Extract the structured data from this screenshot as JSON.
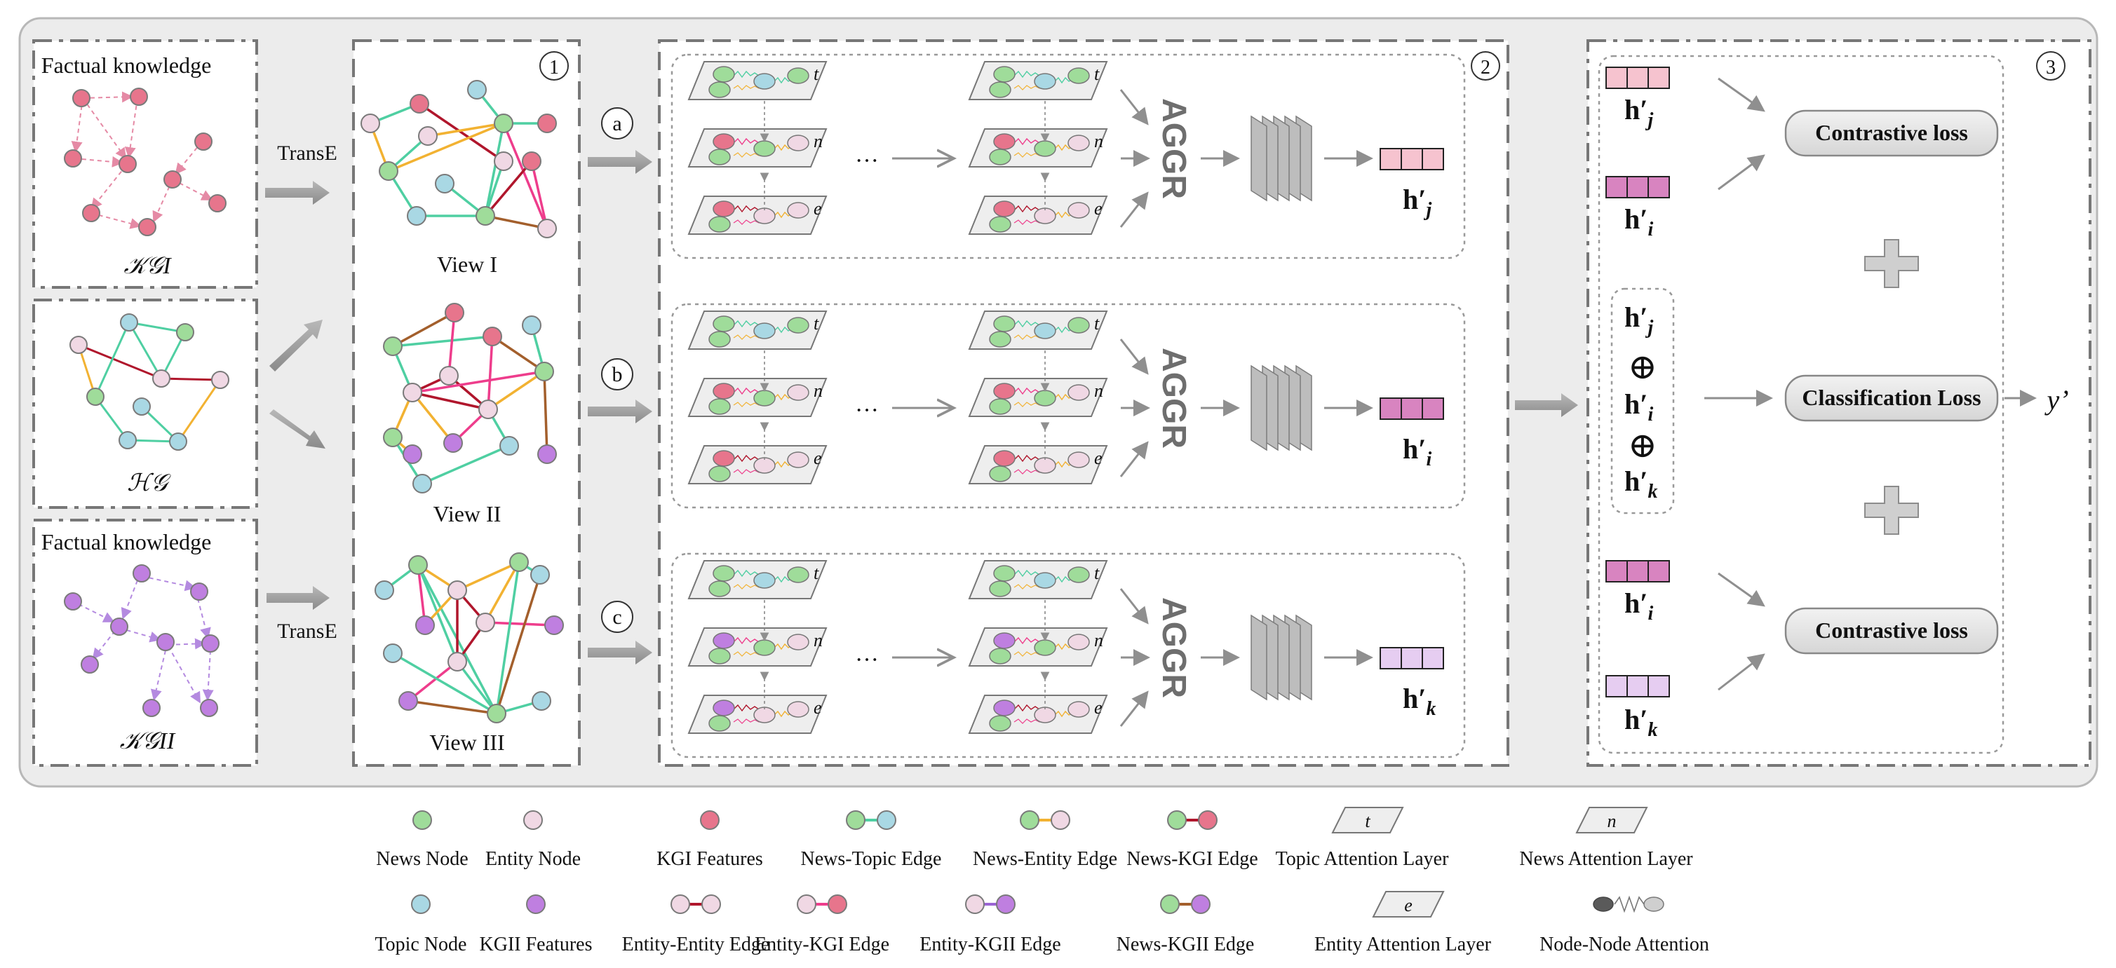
{
  "colors": {
    "news": "#9fdc9a",
    "entity": "#f0d8e4",
    "kgi": "#e7758c",
    "topic": "#a9d8e4",
    "kgii": "#bf7fe0",
    "edge_news_topic": "#4fcfa2",
    "edge_news_entity": "#f2b232",
    "edge_entity_entity": "#b0162c",
    "edge_entity_kgi": "#ee3d8c",
    "edge_entity_kgii": "#9b63d4",
    "edge_news_kgii": "#a35f2c",
    "kg_arrow_kgi": "#e58aa5",
    "kg_arrow_kgii": "#b48ae0",
    "box": "#8a8a8a",
    "arrow": "#8f8f8f"
  },
  "left": {
    "kgi_title": "Factual knowledge",
    "kgi_name": "𝒦𝒢I",
    "hg_name": "ℋ𝒢",
    "kgii_title": "Factual knowledge",
    "kgii_name": "𝒦𝒢II",
    "transe_top": "TransE",
    "transe_bottom": "TransE"
  },
  "views": {
    "num": "1",
    "view1": "View I",
    "view2": "View II",
    "view3": "View III"
  },
  "middle": {
    "num": "2",
    "branches": [
      {
        "letter": "a",
        "aggr": "AGGR",
        "out": "h′",
        "out_sub": "j"
      },
      {
        "letter": "b",
        "aggr": "AGGR",
        "out": "h′",
        "out_sub": "i"
      },
      {
        "letter": "c",
        "aggr": "AGGR",
        "out": "h′",
        "out_sub": "k"
      }
    ],
    "layer_letters": [
      "t",
      "n",
      "e"
    ],
    "dots": "···"
  },
  "right": {
    "num": "3",
    "contrastive_top": "Contrastive loss",
    "classification": "Classification Loss",
    "contrastive_bottom": "Contrastive loss",
    "output": "y’",
    "h": "h′",
    "sub_j": "j",
    "sub_i": "i",
    "sub_k": "k",
    "oplus": "⊕"
  },
  "legend": [
    {
      "label": "News Node"
    },
    {
      "label": "Entity Node"
    },
    {
      "label": "KGI  Features"
    },
    {
      "label": "News-Topic Edge"
    },
    {
      "label": "News-Entity Edge"
    },
    {
      "label": "News-KGI Edge"
    },
    {
      "label": "Topic Attention Layer",
      "letter": "t"
    },
    {
      "label": "News Attention Layer",
      "letter": "n"
    },
    {
      "label": "Topic Node"
    },
    {
      "label": "KGII Features"
    },
    {
      "label": "Entity-Entity Edge"
    },
    {
      "label": "Entity-KGI Edge"
    },
    {
      "label": "Entity-KGII Edge"
    },
    {
      "label": "News-KGII Edge"
    },
    {
      "label": "Entity Attention Layer",
      "letter": "e"
    },
    {
      "label": "Node-Node Attention"
    }
  ]
}
